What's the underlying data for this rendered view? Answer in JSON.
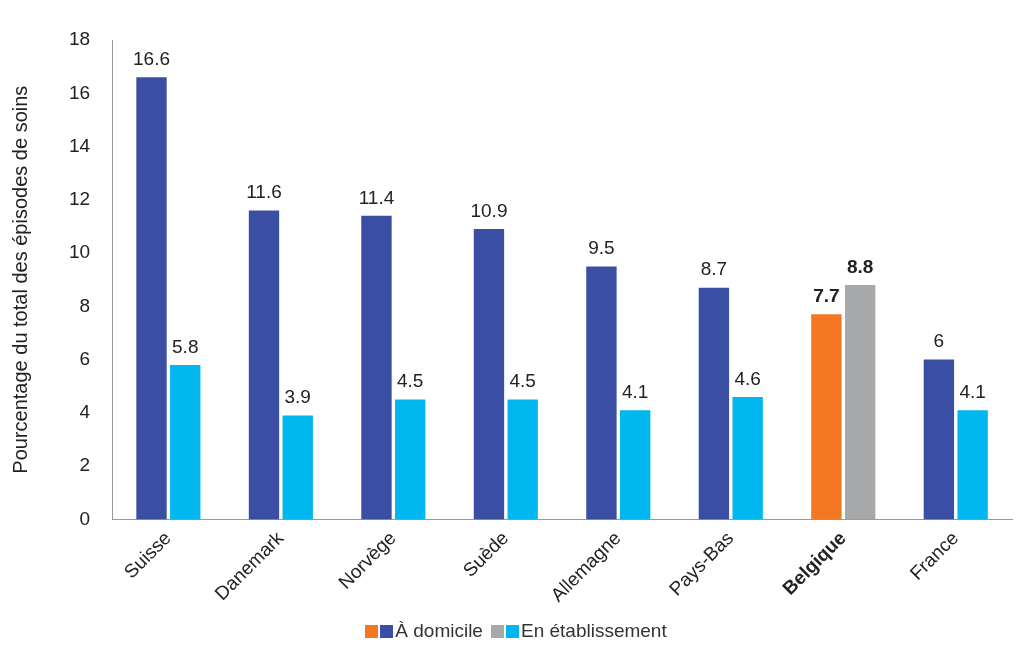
{
  "chart_data": {
    "type": "bar",
    "ylabel": "Pourcentage du total des épisodes de soins",
    "categories": [
      "Suisse",
      "Danemark",
      "Norvège",
      "Suède",
      "Allemagne",
      "Pays-Bas",
      "Belgique",
      "France"
    ],
    "series": [
      {
        "name": "À domicile",
        "color": "#3a4fa3",
        "colors": [
          "#3a4fa3",
          "#3a4fa3",
          "#3a4fa3",
          "#3a4fa3",
          "#3a4fa3",
          "#3a4fa3",
          "#f47721",
          "#3a4fa3"
        ],
        "values": [
          16.6,
          11.6,
          11.4,
          10.9,
          9.5,
          8.7,
          7.7,
          6
        ]
      },
      {
        "name": "En établissement",
        "color": "#00b8ef",
        "colors": [
          "#00b8ef",
          "#00b8ef",
          "#00b8ef",
          "#00b8ef",
          "#00b8ef",
          "#00b8ef",
          "#a7a8aa",
          "#00b8ef"
        ],
        "values": [
          5.8,
          3.9,
          4.5,
          4.5,
          4.1,
          4.6,
          8.8,
          4.1
        ]
      }
    ],
    "ylim": [
      0,
      18
    ],
    "yticks": [
      0,
      2,
      4,
      6,
      8,
      10,
      12,
      14,
      16,
      18
    ],
    "grid": false,
    "legend": "bottom",
    "data_labels": true
  }
}
